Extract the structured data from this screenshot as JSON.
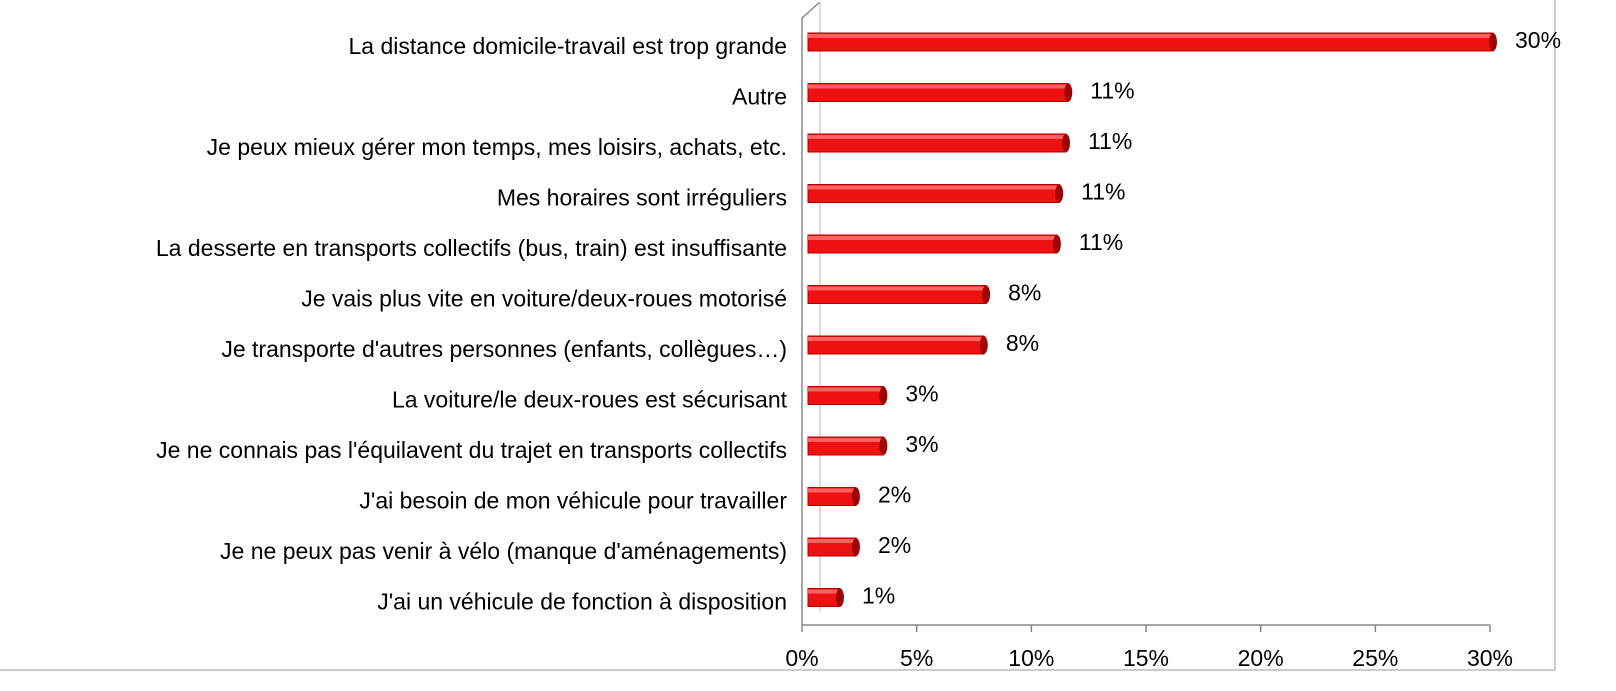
{
  "chart_data": {
    "type": "bar",
    "orientation": "horizontal",
    "categories": [
      "La distance domicile-travail est trop grande",
      "Autre",
      "Je peux mieux gérer mon temps, mes loisirs, achats, etc.",
      "Mes horaires sont irréguliers",
      "La desserte en transports collectifs (bus, train) est insuffisante",
      "Je vais plus vite en voiture/deux-roues motorisé",
      "Je transporte d'autres personnes (enfants, collègues…)",
      "La voiture/le deux-roues est sécurisant",
      "Je ne connais pas l'équilavent du trajet en transports collectifs",
      "J'ai besoin de mon véhicule pour travailler",
      "Je ne peux pas venir à vélo (manque d'aménagements)",
      "J'ai un véhicule de fonction à disposition"
    ],
    "values": [
      30,
      11.4,
      11.3,
      11.0,
      10.9,
      7.8,
      7.7,
      3.3,
      3.3,
      2.1,
      2.1,
      1.4
    ],
    "value_labels": [
      "30%",
      "11%",
      "11%",
      "11%",
      "11%",
      "8%",
      "8%",
      "3%",
      "3%",
      "2%",
      "2%",
      "1%"
    ],
    "color": "#ee1111",
    "xlim": [
      0,
      30
    ],
    "xticks": [
      {
        "value": 0,
        "label": "0%"
      },
      {
        "value": 5,
        "label": "5%"
      },
      {
        "value": 10,
        "label": "10%"
      },
      {
        "value": 15,
        "label": "15%"
      },
      {
        "value": 20,
        "label": "20%"
      },
      {
        "value": 25,
        "label": "25%"
      },
      {
        "value": 30,
        "label": "30%"
      }
    ]
  }
}
